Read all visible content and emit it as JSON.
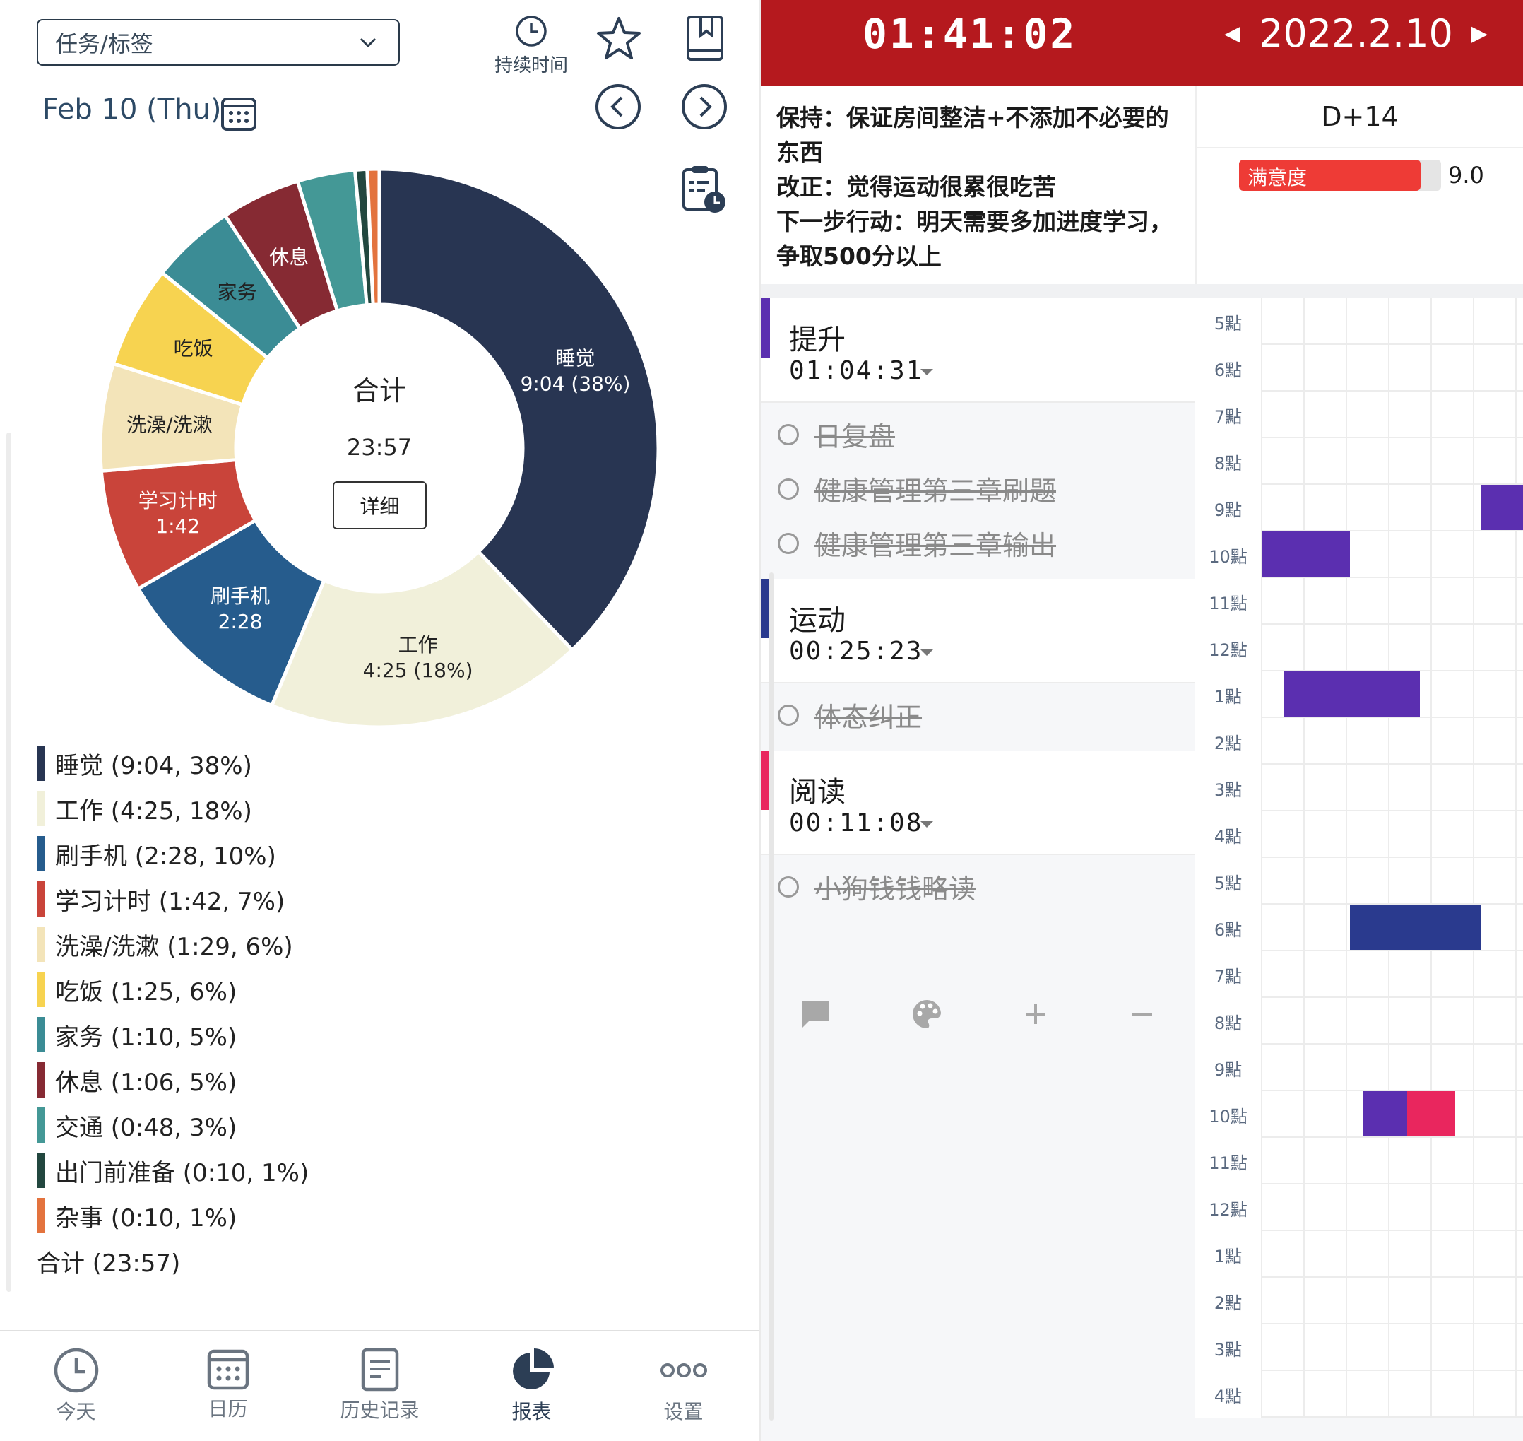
{
  "left": {
    "dropdown_label": "任务/标签",
    "duration_label": "持续时间",
    "date": "Feb 10 (Thu)",
    "center_title": "合计",
    "center_total": "23:57",
    "detail_button": "详细",
    "legend": [
      {
        "text": "睡觉 (9:04, 38%)",
        "color": "#283552"
      },
      {
        "text": "工作 (4:25, 18%)",
        "color": "#f1f0da"
      },
      {
        "text": "刷手机 (2:28, 10%)",
        "color": "#265c8d"
      },
      {
        "text": "学习计时 (1:42, 7%)",
        "color": "#c9443a"
      },
      {
        "text": "洗澡/洗漱 (1:29, 6%)",
        "color": "#f3e4b9"
      },
      {
        "text": "吃饭 (1:25, 6%)",
        "color": "#f7d350"
      },
      {
        "text": "家务 (1:10, 5%)",
        "color": "#3b8c95"
      },
      {
        "text": "休息 (1:06, 5%)",
        "color": "#862a33"
      },
      {
        "text": "交通 (0:48, 3%)",
        "color": "#449896"
      },
      {
        "text": "出门前准备 (0:10, 1%)",
        "color": "#22473f"
      },
      {
        "text": "杂事 (0:10, 1%)",
        "color": "#e3733e"
      }
    ],
    "legend_total": "合计 (23:57)",
    "nav": [
      "今天",
      "日历",
      "历史记录",
      "报表",
      "设置"
    ]
  },
  "chart_data": {
    "type": "pie",
    "total": "23:57",
    "slices": [
      {
        "name": "睡觉",
        "minutes": 544,
        "label": "睡觉",
        "sublabel": "9:04 (38%)",
        "color": "#283552",
        "text_color": "#ffffff"
      },
      {
        "name": "工作",
        "minutes": 265,
        "label": "工作",
        "sublabel": "4:25 (18%)",
        "color": "#f1f0da",
        "text_color": "#222222"
      },
      {
        "name": "刷手机",
        "minutes": 148,
        "label": "刷手机",
        "sublabel": "2:28",
        "color": "#265c8d",
        "text_color": "#ffffff"
      },
      {
        "name": "学习计时",
        "minutes": 102,
        "label": "学习计时",
        "sublabel": "1:42",
        "color": "#c9443a",
        "text_color": "#ffffff"
      },
      {
        "name": "洗澡/洗漱",
        "minutes": 89,
        "label": "洗澡/洗漱",
        "sublabel": "",
        "color": "#f3e4b9",
        "text_color": "#222222"
      },
      {
        "name": "吃饭",
        "minutes": 85,
        "label": "吃饭",
        "sublabel": "",
        "color": "#f7d350",
        "text_color": "#222222"
      },
      {
        "name": "家务",
        "minutes": 70,
        "label": "家务",
        "sublabel": "",
        "color": "#3b8c95",
        "text_color": "#222222"
      },
      {
        "name": "休息",
        "minutes": 66,
        "label": "休息",
        "sublabel": "",
        "color": "#862a33",
        "text_color": "#ffffff"
      },
      {
        "name": "交通",
        "minutes": 48,
        "label": "",
        "sublabel": "",
        "color": "#449896",
        "text_color": "#ffffff"
      },
      {
        "name": "出门前准备",
        "minutes": 10,
        "label": "",
        "sublabel": "",
        "color": "#22473f",
        "text_color": "#ffffff"
      },
      {
        "name": "杂事",
        "minutes": 10,
        "label": "",
        "sublabel": "",
        "color": "#e3733e",
        "text_color": "#ffffff"
      }
    ]
  },
  "right": {
    "timer": "01:41:02",
    "date": "2022.2.10",
    "notes": [
      "保持：保证房间整洁+不添加不必要的东西",
      "改正：觉得运动很累很吃苦",
      "下一步行动：明天需要多加进度学习，争取500分以上"
    ],
    "d_plus": "D+14",
    "satisfaction_label": "满意度",
    "satisfaction_value": "9.0",
    "satisfaction_fraction": 0.9,
    "categories": [
      {
        "name": "提升",
        "time": "01:04:31",
        "color": "#5b2fb0",
        "tasks": [
          "日复盘",
          "健康管理第三章刷题",
          "健康管理第三章输出"
        ]
      },
      {
        "name": "运动",
        "time": "00:25:23",
        "color": "#2a3a8e",
        "tasks": [
          "体态纠正"
        ]
      },
      {
        "name": "阅读",
        "time": "00:11:08",
        "color": "#e9265e",
        "tasks": [
          "小狗钱钱略读"
        ]
      }
    ],
    "hours": [
      "5點",
      "6點",
      "7點",
      "8點",
      "9點",
      "10點",
      "11點",
      "12點",
      "1點",
      "2點",
      "3點",
      "4點",
      "5點",
      "6點",
      "7點",
      "8點",
      "9點",
      "10點",
      "11點",
      "12點",
      "1點",
      "2點",
      "3點",
      "4點"
    ],
    "blocks": [
      {
        "hour_index": 4,
        "start_min": 50,
        "end_min": 60,
        "color": "#5b2fb0"
      },
      {
        "hour_index": 5,
        "start_min": 0,
        "end_min": 20,
        "color": "#5b2fb0"
      },
      {
        "hour_index": 8,
        "start_min": 5,
        "end_min": 36,
        "color": "#5b2fb0"
      },
      {
        "hour_index": 13,
        "start_min": 20,
        "end_min": 50,
        "color": "#2a3a8e"
      },
      {
        "hour_index": 17,
        "start_min": 23,
        "end_min": 33,
        "color": "#5b2fb0"
      },
      {
        "hour_index": 17,
        "start_min": 33,
        "end_min": 44,
        "color": "#e9265e"
      }
    ]
  }
}
